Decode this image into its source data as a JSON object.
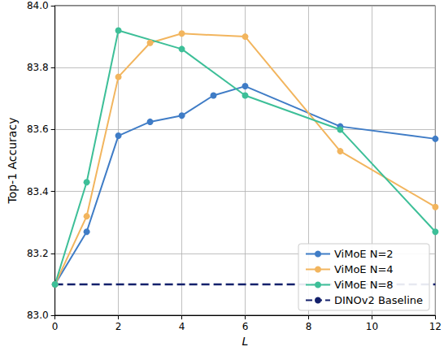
{
  "chart_data": {
    "type": "line",
    "x_label": "L",
    "y_label": "Top-1 Accuracy",
    "xlim": [
      0,
      12
    ],
    "xticks": [
      0,
      2,
      4,
      6,
      8,
      10,
      12
    ],
    "ylim": [
      83,
      84
    ],
    "yticks": [
      {
        "value": 83,
        "label": "83.0"
      },
      83.2,
      83.4,
      83.6,
      83.8,
      {
        "value": 84,
        "label": "84.0"
      }
    ],
    "grid": true,
    "legend": "lower right",
    "series": [
      {
        "name": "ViMoE N=2",
        "color": "#3f7cc6",
        "marker": "circle",
        "line_style": "solid",
        "x": [
          0,
          1,
          2,
          3,
          4,
          5,
          6,
          9,
          12
        ],
        "values": [
          83.1,
          83.27,
          83.58,
          83.625,
          83.645,
          83.71,
          83.74,
          83.61,
          83.57
        ]
      },
      {
        "name": "ViMoE N=4",
        "color": "#f2b55e",
        "marker": "circle",
        "line_style": "solid",
        "x": [
          0,
          1,
          2,
          3,
          4,
          6,
          9,
          12
        ],
        "values": [
          83.1,
          83.32,
          83.77,
          83.88,
          83.91,
          83.9,
          83.53,
          83.35
        ]
      },
      {
        "name": "ViMoE N=8",
        "color": "#3dbf98",
        "marker": "circle",
        "line_style": "solid",
        "x": [
          0,
          1,
          2,
          4,
          6,
          9,
          12
        ],
        "values": [
          83.1,
          83.43,
          83.92,
          83.86,
          83.71,
          83.6,
          83.27
        ]
      },
      {
        "name": "DINOv2 Baseline",
        "color": "#13206b",
        "marker": "none",
        "line_style": "dashed",
        "x": [
          0,
          12
        ],
        "values": [
          83.1,
          83.1
        ]
      }
    ]
  }
}
